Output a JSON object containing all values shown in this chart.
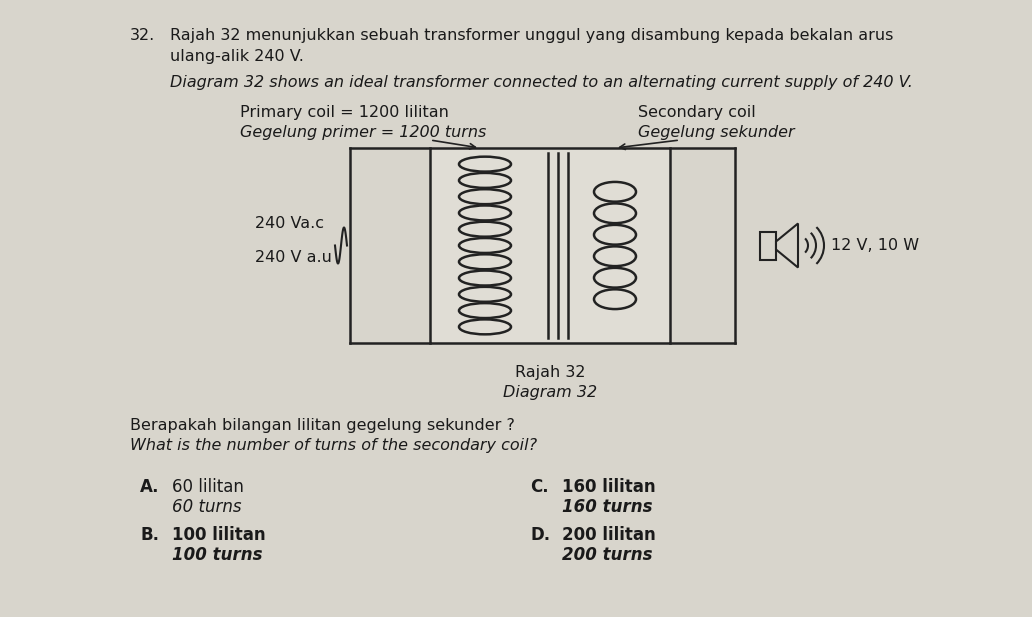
{
  "background_color": "#b8b8b8",
  "paper_color": "#d8d5cc",
  "question_number": "32.",
  "title_bm": "Rajah 32 menunjukkan sebuah transformer unggul yang disambung kepada bekalan arus\nulang-alik 240 V.",
  "title_en": "Diagram 32 shows an ideal transformer connected to an alternating current supply of 240 V.",
  "primary_coil_label_bm": "Primary coil = 1200 lilitan",
  "primary_coil_label_en": "Gegelung primer = 1200 turns",
  "secondary_coil_label_bm": "Secondary coil",
  "secondary_coil_label_en": "Gegelung sekunder",
  "voltage_label_line1": "240 Va.c",
  "voltage_label_line2": "240 V a.u",
  "load_label": "12 V, 10 W",
  "caption_bm": "Rajah 32",
  "caption_en": "Diagram 32",
  "question_bm": "Berapakah bilangan lilitan gegelung sekunder ?",
  "question_en": "What is the number of turns of the secondary coil?",
  "opt_A_bm": "60 lilitan",
  "opt_A_en": "60 turns",
  "opt_B_bm": "100 lilitan",
  "opt_B_en": "100 turns",
  "opt_C_bm": "160 lilitan",
  "opt_C_en": "160 turns",
  "opt_D_bm": "200 lilitan",
  "opt_D_en": "200 turns",
  "text_color": "#1a1a1a",
  "diagram_color": "#222222",
  "font_size": 11.5
}
